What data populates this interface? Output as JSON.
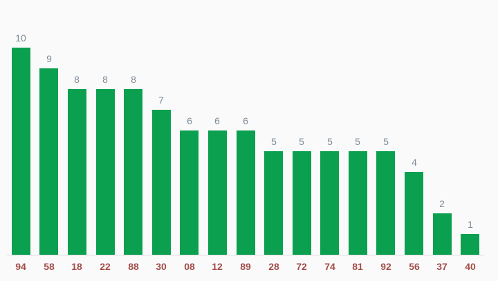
{
  "chart_data": {
    "type": "bar",
    "title": "",
    "xlabel": "",
    "ylabel": "",
    "categories": [
      "94",
      "58",
      "18",
      "22",
      "88",
      "30",
      "08",
      "12",
      "89",
      "28",
      "72",
      "74",
      "81",
      "92",
      "56",
      "37",
      "40"
    ],
    "values": [
      10,
      9,
      8,
      8,
      8,
      7,
      6,
      6,
      6,
      5,
      5,
      5,
      5,
      5,
      4,
      2,
      1
    ],
    "annotations": [
      "10",
      "9",
      "8",
      "8",
      "8",
      "7",
      "6",
      "6",
      "6",
      "5",
      "5",
      "5",
      "5",
      "5",
      "4",
      "2",
      "1"
    ],
    "ylim": [
      0,
      12
    ],
    "grid": false,
    "legend": "none",
    "colors": {
      "bar": "#0ba04f",
      "annotation_text": "#7e8b97",
      "category_label_text": "#a14d49",
      "axis_line": "#dcdcdc",
      "background": "#fafafa"
    }
  }
}
